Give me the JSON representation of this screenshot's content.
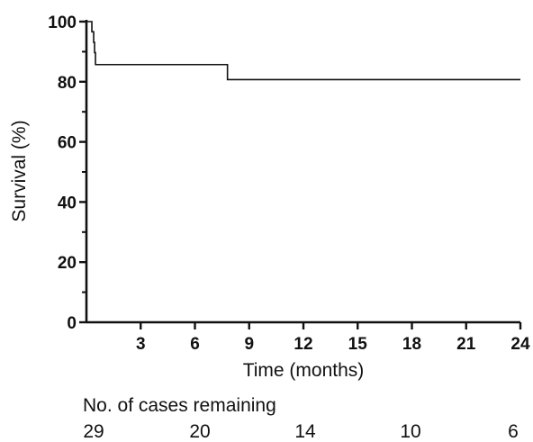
{
  "chart_data": {
    "type": "line",
    "curve": "step",
    "xlabel": "Time (months)",
    "ylabel": "Survival (%)",
    "xlim": [
      0,
      24
    ],
    "ylim": [
      0,
      100
    ],
    "xticks": [
      3,
      6,
      9,
      12,
      15,
      18,
      21,
      24
    ],
    "yticks": [
      0,
      20,
      40,
      60,
      80,
      100
    ],
    "grid": false,
    "series": [
      {
        "x": [
          0,
          0.3,
          0.4,
          0.45,
          0.5,
          7.8,
          24
        ],
        "y": [
          100,
          96.6,
          93.1,
          89.7,
          85.7,
          80.7,
          80.7
        ]
      }
    ],
    "risk_table": {
      "title": "No. of cases remaining",
      "counts": [
        "29",
        "20",
        "14",
        "10",
        "6"
      ]
    }
  }
}
